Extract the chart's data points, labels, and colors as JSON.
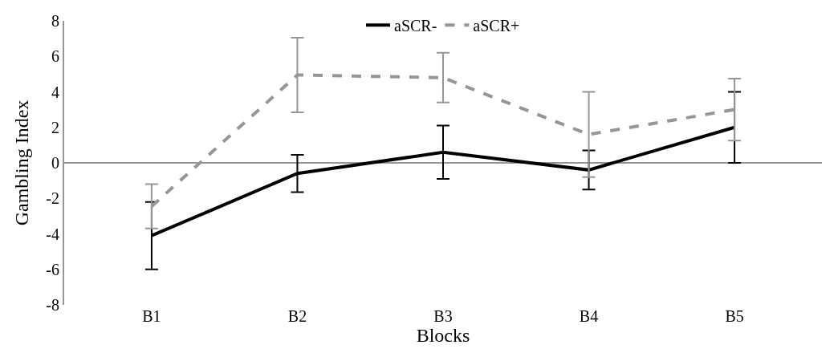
{
  "chart_data": {
    "type": "line",
    "xlabel": "Blocks",
    "ylabel": "Gambling Index",
    "categories": [
      "B1",
      "B2",
      "B3",
      "B4",
      "B5"
    ],
    "series": [
      {
        "name": "aSCR-",
        "color": "#000000",
        "line_style": "solid",
        "values": [
          -4.1,
          -0.6,
          0.6,
          -0.4,
          2.0
        ],
        "errors": [
          1.9,
          1.05,
          1.5,
          1.1,
          2.0
        ]
      },
      {
        "name": "aSCR+",
        "color": "#969696",
        "line_style": "dashed",
        "values": [
          -2.45,
          4.95,
          4.8,
          1.6,
          3.0
        ],
        "errors": [
          1.25,
          2.1,
          1.4,
          2.4,
          1.75
        ]
      }
    ],
    "ylim": [
      -8,
      8
    ],
    "yticks": [
      -8,
      -6,
      -4,
      -2,
      0,
      2,
      4,
      6,
      8
    ],
    "legend": "top",
    "marker": "none"
  }
}
